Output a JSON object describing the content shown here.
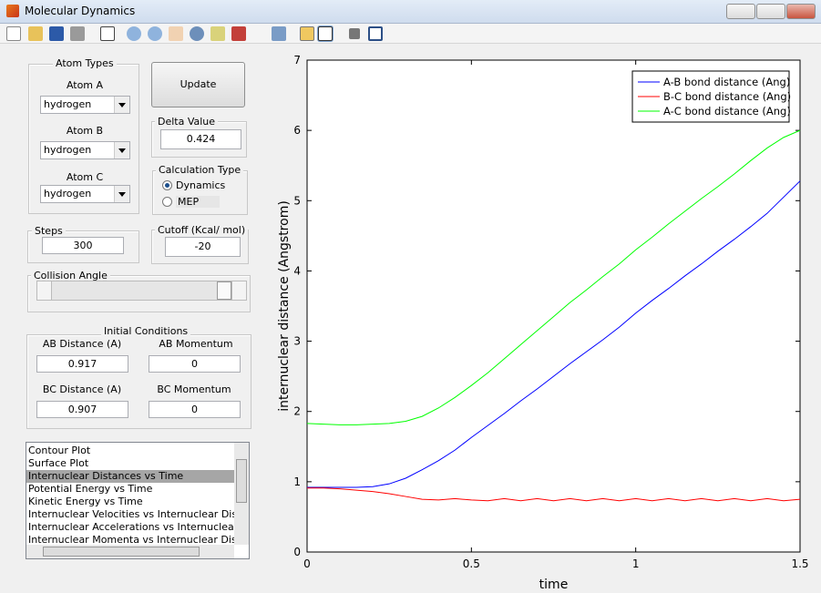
{
  "window": {
    "title": "Molecular Dynamics"
  },
  "controls": {
    "atom_types": {
      "title": "Atom Types",
      "atoms": [
        {
          "label": "Atom A",
          "value": "hydrogen"
        },
        {
          "label": "Atom B",
          "value": "hydrogen"
        },
        {
          "label": "Atom C",
          "value": "hydrogen"
        }
      ]
    },
    "update_button": "Update",
    "delta_value": {
      "label": "Delta Value",
      "value": "0.424"
    },
    "calculation_type": {
      "title": "Calculation Type",
      "options": [
        "Dynamics",
        "MEP"
      ],
      "selected": 0
    },
    "steps": {
      "label": "Steps",
      "value": "300"
    },
    "cutoff": {
      "label": "Cutoff (Kcal/ mol)",
      "value": "-20"
    },
    "collision_angle": {
      "label": "Collision Angle"
    },
    "initial_conditions": {
      "title": "Initial Conditions",
      "fields": [
        {
          "label": "AB Distance (A)",
          "value": "0.917"
        },
        {
          "label": "AB Momentum",
          "value": "0"
        },
        {
          "label": "BC Distance (A)",
          "value": "0.907"
        },
        {
          "label": "BC Momentum",
          "value": "0"
        }
      ]
    },
    "plot_list": {
      "items": [
        "Contour Plot",
        "Surface Plot",
        "Internuclear Distances vs Time",
        "Potential Energy vs Time",
        "Kinetic Energy vs Time",
        "Internuclear Velocities vs Internuclear Distance",
        "Internuclear Accelerations vs Internuclear Distance",
        "Internuclear Momenta vs Internuclear Distance"
      ],
      "selected": 2
    }
  },
  "chart_data": {
    "type": "line",
    "xlabel": "time",
    "ylabel": "internuclear distance (Angstrom)",
    "x": [
      0,
      0.05,
      0.1,
      0.15,
      0.2,
      0.25,
      0.3,
      0.35,
      0.4,
      0.45,
      0.5,
      0.55,
      0.6,
      0.65,
      0.7,
      0.75,
      0.8,
      0.85,
      0.9,
      0.95,
      1.0,
      1.05,
      1.1,
      1.15,
      1.2,
      1.25,
      1.3,
      1.35,
      1.4,
      1.45,
      1.5
    ],
    "series": [
      {
        "name": "A-B bond distance (Ang)",
        "color": "#0000ff",
        "values": [
          0.92,
          0.92,
          0.92,
          0.92,
          0.93,
          0.97,
          1.05,
          1.17,
          1.3,
          1.45,
          1.63,
          1.8,
          1.97,
          2.15,
          2.32,
          2.5,
          2.68,
          2.85,
          3.02,
          3.2,
          3.4,
          3.58,
          3.75,
          3.93,
          4.1,
          4.28,
          4.45,
          4.63,
          4.82,
          5.05,
          5.28
        ]
      },
      {
        "name": "B-C bond distance (Ang)",
        "color": "#ff0000",
        "values": [
          0.91,
          0.91,
          0.9,
          0.88,
          0.86,
          0.83,
          0.79,
          0.75,
          0.74,
          0.76,
          0.74,
          0.73,
          0.76,
          0.73,
          0.76,
          0.73,
          0.76,
          0.73,
          0.76,
          0.73,
          0.76,
          0.73,
          0.76,
          0.73,
          0.76,
          0.73,
          0.76,
          0.73,
          0.76,
          0.73,
          0.75
        ]
      },
      {
        "name": "A-C bond distance (Ang)",
        "color": "#00ff00",
        "values": [
          1.83,
          1.82,
          1.81,
          1.81,
          1.82,
          1.83,
          1.86,
          1.93,
          2.05,
          2.2,
          2.37,
          2.55,
          2.75,
          2.95,
          3.15,
          3.35,
          3.55,
          3.73,
          3.92,
          4.1,
          4.3,
          4.48,
          4.67,
          4.85,
          5.03,
          5.2,
          5.38,
          5.57,
          5.75,
          5.9,
          6.0
        ]
      }
    ],
    "xlim": [
      0,
      1.5
    ],
    "xticks": [
      0,
      0.5,
      1,
      1.5
    ],
    "ylim": [
      0,
      7
    ],
    "yticks": [
      0,
      1,
      2,
      3,
      4,
      5,
      6,
      7
    ],
    "legend": "northeast"
  }
}
